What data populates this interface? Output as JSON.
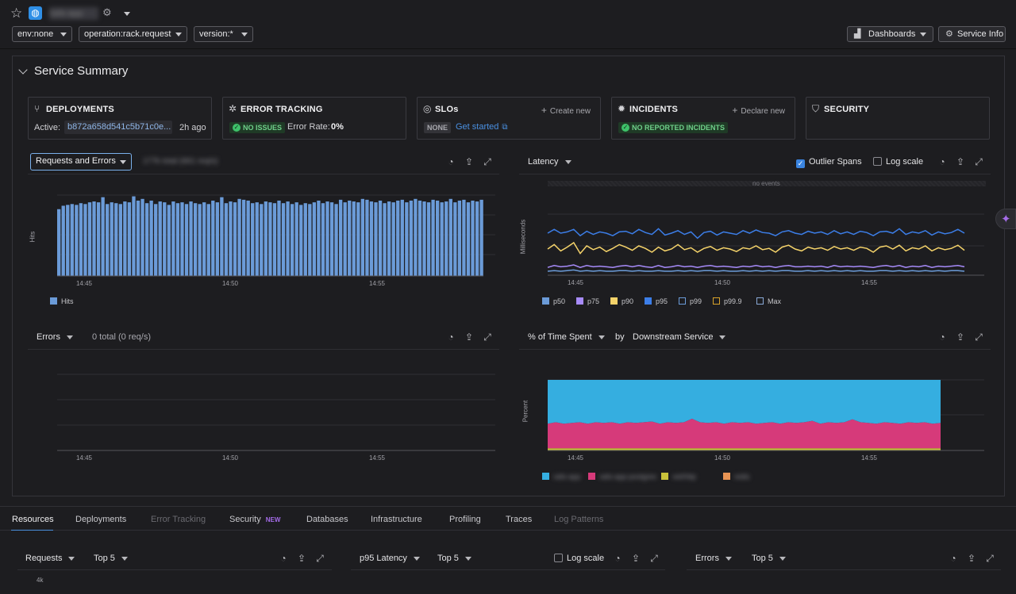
{
  "header": {
    "service_name": "rails-app",
    "filters": [
      "env:none",
      "operation:rack.request",
      "version:*"
    ],
    "dashboards_label": "Dashboards",
    "service_info_label": "Service Info"
  },
  "summary": {
    "title": "Service Summary",
    "deployments": {
      "title": "DEPLOYMENTS",
      "active_label": "Active:",
      "version": "b872a658d541c5b71c0e...",
      "age": "2h ago"
    },
    "error_tracking": {
      "title": "ERROR TRACKING",
      "badge": "NO ISSUES",
      "rate_label": "Error Rate:",
      "rate_value": "0%"
    },
    "slos": {
      "title": "SLOs",
      "action": "Create new",
      "badge": "NONE",
      "link": "Get started"
    },
    "incidents": {
      "title": "INCIDENTS",
      "action": "Declare new",
      "badge": "NO REPORTED INCIDENTS"
    },
    "security": {
      "title": "SECURITY"
    }
  },
  "charts": {
    "requests": {
      "dropdown": "Requests and Errors",
      "subtitle": "177k total (661 req/s)",
      "ylabel": "Hits",
      "legend": "Hits",
      "ticks": [
        "14:45",
        "14:50",
        "14:55"
      ]
    },
    "latency": {
      "dropdown": "Latency",
      "outlier": "Outlier Spans",
      "logscale": "Log scale",
      "ylabel": "Milliseconds",
      "no_events": "no events",
      "ticks": [
        "14:45",
        "14:50",
        "14:55"
      ],
      "legend": [
        "p50",
        "p75",
        "p90",
        "p95",
        "p99",
        "p99.9",
        "Max"
      ]
    },
    "errors": {
      "dropdown": "Errors",
      "subtitle": "0 total (0 req/s)",
      "ticks": [
        "14:45",
        "14:50",
        "14:55"
      ]
    },
    "time_spent": {
      "dropdown": "% of Time Spent",
      "by": "by",
      "group": "Downstream Service",
      "ylabel": "Percent",
      "ticks": [
        "14:45",
        "14:50",
        "14:55"
      ],
      "legend": [
        "rails-app",
        "rails-app-postgres",
        "net/http",
        "redis"
      ]
    }
  },
  "colors": {
    "accent": "#4a8fdd",
    "bars": "#6b9bd8",
    "p50": "#6b9bd8",
    "p75": "#a78bfa",
    "p90": "#f5d36a",
    "p95": "#3c7ee8",
    "area_top": "#35aee0",
    "area_mid": "#d63a7a",
    "area_low": "#c9c23a",
    "area_low2": "#e89454",
    "new": "#a46ce8"
  },
  "tabs": [
    {
      "label": "Resources",
      "state": "active"
    },
    {
      "label": "Deployments",
      "state": "normal"
    },
    {
      "label": "Error Tracking",
      "state": "disabled"
    },
    {
      "label": "Security",
      "state": "normal",
      "badge": "NEW"
    },
    {
      "label": "Databases",
      "state": "normal"
    },
    {
      "label": "Infrastructure",
      "state": "normal"
    },
    {
      "label": "Profiling",
      "state": "normal"
    },
    {
      "label": "Traces",
      "state": "normal"
    },
    {
      "label": "Log Patterns",
      "state": "disabled"
    }
  ],
  "bottom": {
    "requests": {
      "metric": "Requests",
      "top": "Top 5",
      "tick": "4k"
    },
    "latency": {
      "metric": "p95 Latency",
      "top": "Top 5",
      "logscale": "Log scale"
    },
    "errors": {
      "metric": "Errors",
      "top": "Top 5"
    }
  },
  "chart_data": [
    {
      "type": "bar",
      "ylabel": "Hits",
      "x_ticks": [
        "14:45",
        "14:50",
        "14:55"
      ],
      "series": [
        {
          "name": "Hits",
          "values": [
            0.78,
            0.82,
            0.83,
            0.84,
            0.83,
            0.85,
            0.84,
            0.86,
            0.87,
            0.86,
            0.92,
            0.84,
            0.86,
            0.85,
            0.84,
            0.87,
            0.86,
            0.93,
            0.88,
            0.9,
            0.85,
            0.88,
            0.84,
            0.87,
            0.86,
            0.83,
            0.87,
            0.85,
            0.86,
            0.84,
            0.87,
            0.85,
            0.84,
            0.86,
            0.84,
            0.88,
            0.86,
            0.92,
            0.85,
            0.87,
            0.86,
            0.9,
            0.89,
            0.88,
            0.85,
            0.86,
            0.84,
            0.87,
            0.86,
            0.85,
            0.88,
            0.85,
            0.87,
            0.84,
            0.86,
            0.83,
            0.85,
            0.84,
            0.86,
            0.88,
            0.85,
            0.87,
            0.86,
            0.84,
            0.89,
            0.86,
            0.88,
            0.87,
            0.86,
            0.9,
            0.89,
            0.87,
            0.86,
            0.88,
            0.85,
            0.87,
            0.86,
            0.88,
            0.89,
            0.86,
            0.88,
            0.9,
            0.88,
            0.87,
            0.86,
            0.89,
            0.88,
            0.86,
            0.87,
            0.9,
            0.86,
            0.88,
            0.89,
            0.86,
            0.88,
            0.87,
            0.89,
            0.86,
            0.88,
            0.9
          ]
        }
      ]
    },
    {
      "type": "line",
      "ylabel": "Milliseconds",
      "x_ticks": [
        "14:45",
        "14:50",
        "14:55"
      ],
      "series": [
        {
          "name": "p95",
          "values": [
            0.6,
            0.66,
            0.6,
            0.62,
            0.66,
            0.56,
            0.63,
            0.58,
            0.62,
            0.6,
            0.56,
            0.62,
            0.63,
            0.59,
            0.66,
            0.61,
            0.58,
            0.67,
            0.57,
            0.6,
            0.64,
            0.58,
            0.62,
            0.52,
            0.61,
            0.63,
            0.57,
            0.62,
            0.6,
            0.58,
            0.64,
            0.6,
            0.65,
            0.61,
            0.6,
            0.56,
            0.62,
            0.64,
            0.6,
            0.58,
            0.63,
            0.6,
            0.62,
            0.58,
            0.64,
            0.59,
            0.62,
            0.58,
            0.63,
            0.61,
            0.56,
            0.62,
            0.63,
            0.6,
            0.67,
            0.58,
            0.62,
            0.6,
            0.64,
            0.57,
            0.62,
            0.59,
            0.61,
            0.66,
            0.6
          ]
        },
        {
          "name": "p90",
          "values": [
            0.35,
            0.42,
            0.32,
            0.38,
            0.45,
            0.28,
            0.4,
            0.34,
            0.38,
            0.31,
            0.36,
            0.42,
            0.38,
            0.33,
            0.4,
            0.36,
            0.3,
            0.38,
            0.32,
            0.35,
            0.42,
            0.34,
            0.37,
            0.3,
            0.36,
            0.39,
            0.33,
            0.37,
            0.35,
            0.31,
            0.37,
            0.35,
            0.4,
            0.34,
            0.36,
            0.3,
            0.38,
            0.41,
            0.35,
            0.32,
            0.38,
            0.35,
            0.37,
            0.33,
            0.39,
            0.35,
            0.37,
            0.33,
            0.38,
            0.36,
            0.3,
            0.38,
            0.4,
            0.35,
            0.41,
            0.32,
            0.37,
            0.35,
            0.4,
            0.32,
            0.37,
            0.34,
            0.36,
            0.41,
            0.33
          ]
        },
        {
          "name": "p75",
          "values": [
            0.06,
            0.09,
            0.07,
            0.08,
            0.1,
            0.06,
            0.09,
            0.07,
            0.08,
            0.07,
            0.06,
            0.08,
            0.09,
            0.07,
            0.09,
            0.07,
            0.06,
            0.09,
            0.06,
            0.07,
            0.09,
            0.07,
            0.08,
            0.06,
            0.08,
            0.09,
            0.07,
            0.08,
            0.07,
            0.06,
            0.08,
            0.07,
            0.09,
            0.07,
            0.08,
            0.06,
            0.08,
            0.09,
            0.07,
            0.07,
            0.08,
            0.07,
            0.08,
            0.06,
            0.09,
            0.07,
            0.08,
            0.07,
            0.08,
            0.07,
            0.06,
            0.08,
            0.09,
            0.07,
            0.09,
            0.06,
            0.08,
            0.07,
            0.09,
            0.06,
            0.08,
            0.07,
            0.08,
            0.09,
            0.07
          ]
        },
        {
          "name": "p50",
          "values": [
            0.0,
            0.01,
            0.0,
            0.01,
            0.02,
            0.0,
            0.01,
            0.0,
            0.01,
            0.0,
            0.0,
            0.01,
            0.01,
            0.0,
            0.01,
            0.0,
            0.0,
            0.01,
            0.0,
            0.0,
            0.01,
            0.0,
            0.01,
            0.0,
            0.01,
            0.01,
            0.0,
            0.01,
            0.0,
            0.0,
            0.01,
            0.0,
            0.01,
            0.0,
            0.01,
            0.0,
            0.01,
            0.01,
            0.0,
            0.0,
            0.01,
            0.0,
            0.01,
            0.0,
            0.01,
            0.0,
            0.01,
            0.0,
            0.01,
            0.0,
            0.0,
            0.01,
            0.01,
            0.0,
            0.01,
            0.0,
            0.01,
            0.0,
            0.01,
            0.0,
            0.01,
            0.0,
            0.01,
            0.01,
            0.0
          ]
        }
      ]
    },
    {
      "type": "area",
      "ylabel": "Percent",
      "x_ticks": [
        "14:45",
        "14:50",
        "14:55"
      ],
      "series": [
        {
          "name": "rails-app",
          "values": [
            0.62,
            0.6,
            0.62,
            0.61,
            0.6,
            0.62,
            0.6,
            0.61,
            0.6,
            0.62,
            0.6,
            0.61,
            0.6,
            0.59,
            0.62,
            0.6,
            0.61,
            0.6,
            0.55,
            0.6,
            0.61,
            0.6,
            0.62,
            0.6,
            0.61,
            0.6,
            0.62,
            0.61,
            0.6,
            0.62,
            0.6,
            0.61,
            0.6,
            0.58,
            0.62,
            0.6,
            0.61,
            0.6,
            0.56,
            0.6,
            0.61,
            0.62,
            0.6,
            0.61,
            0.62,
            0.6,
            0.61,
            0.6,
            0.62,
            0.61
          ]
        },
        {
          "name": "rails-app-postgres",
          "values": [
            0.35,
            0.37,
            0.35,
            0.36,
            0.37,
            0.35,
            0.37,
            0.36,
            0.37,
            0.35,
            0.37,
            0.36,
            0.37,
            0.38,
            0.35,
            0.37,
            0.36,
            0.37,
            0.42,
            0.37,
            0.36,
            0.37,
            0.35,
            0.37,
            0.36,
            0.37,
            0.35,
            0.36,
            0.37,
            0.35,
            0.37,
            0.36,
            0.37,
            0.39,
            0.35,
            0.37,
            0.36,
            0.37,
            0.41,
            0.37,
            0.36,
            0.35,
            0.37,
            0.36,
            0.35,
            0.37,
            0.36,
            0.37,
            0.35,
            0.36
          ]
        },
        {
          "name": "net/http",
          "values": [
            0.03,
            0.03,
            0.03,
            0.03,
            0.03,
            0.03,
            0.03,
            0.03,
            0.03,
            0.03,
            0.03,
            0.03,
            0.03,
            0.03,
            0.03,
            0.03,
            0.03,
            0.03,
            0.03,
            0.03,
            0.03,
            0.03,
            0.03,
            0.03,
            0.03,
            0.03,
            0.03,
            0.03,
            0.03,
            0.03,
            0.03,
            0.03,
            0.03,
            0.03,
            0.03,
            0.03,
            0.03,
            0.03,
            0.03,
            0.03,
            0.03,
            0.03,
            0.03,
            0.03,
            0.03,
            0.03,
            0.03,
            0.03,
            0.03,
            0.03
          ]
        }
      ]
    }
  ]
}
